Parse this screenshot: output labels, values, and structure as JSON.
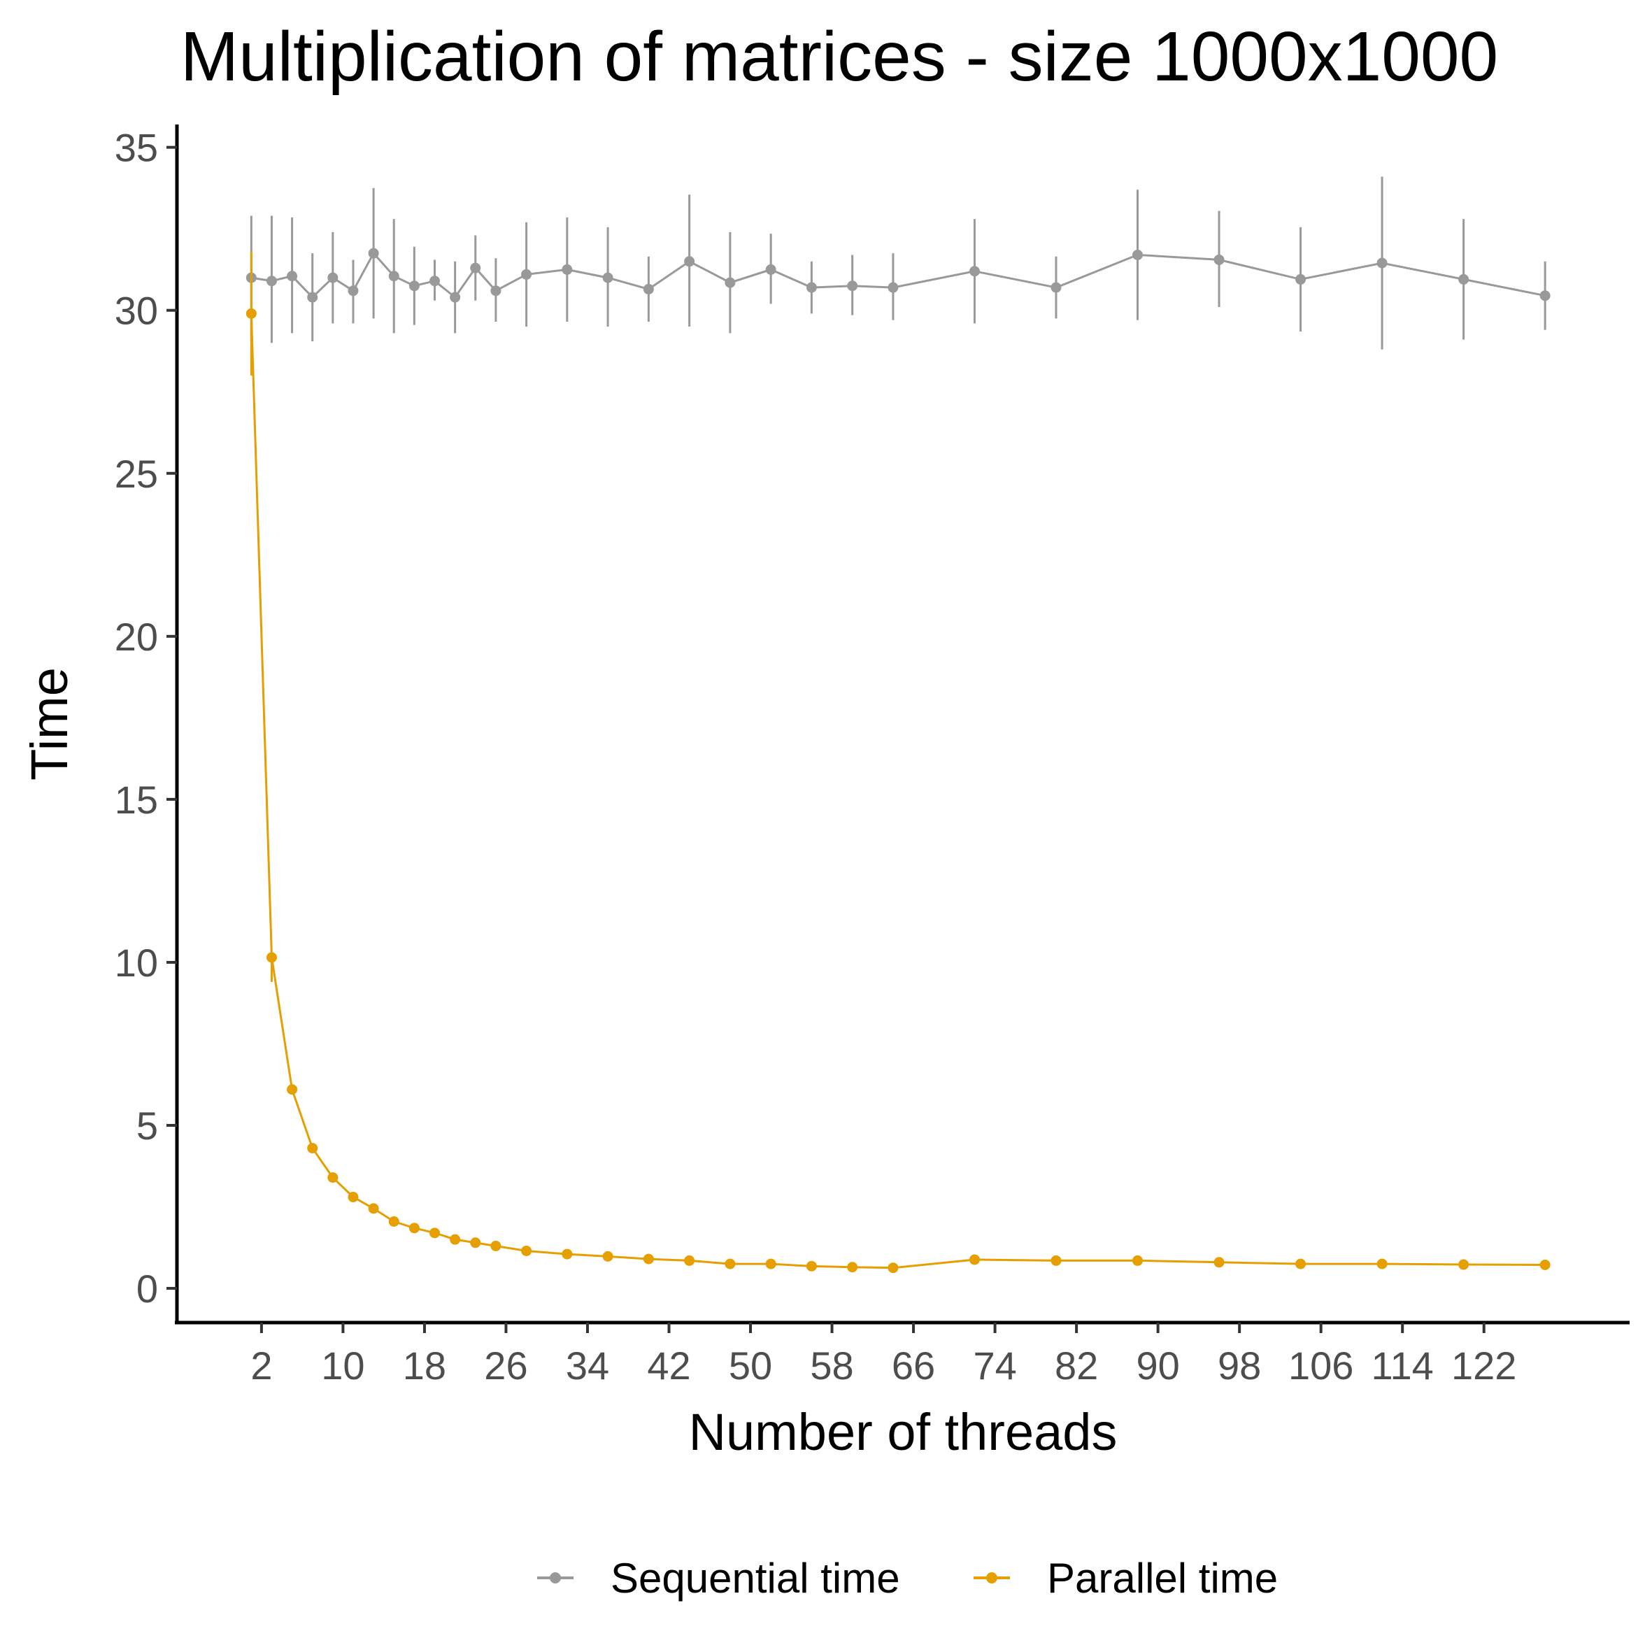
{
  "chart_data": {
    "type": "line",
    "title": "Multiplication of matrices - size 1000x1000",
    "xlabel": "Number of threads",
    "ylabel": "Time",
    "xlim": [
      -6.3,
      136.3
    ],
    "ylim": [
      -1.05,
      35.7
    ],
    "x_ticks": [
      2,
      10,
      18,
      26,
      34,
      42,
      50,
      58,
      66,
      74,
      82,
      90,
      98,
      106,
      114,
      122
    ],
    "y_ticks": [
      0,
      5,
      10,
      15,
      20,
      25,
      30,
      35
    ],
    "grid": false,
    "legend_position": "bottom",
    "series": [
      {
        "name": "Sequential time",
        "color": "#999999",
        "points": [
          {
            "x": 1,
            "y": 31.0,
            "lo": 29.1,
            "hi": 32.9
          },
          {
            "x": 3,
            "y": 30.9,
            "lo": 29.0,
            "hi": 32.9
          },
          {
            "x": 5,
            "y": 31.05,
            "lo": 29.3,
            "hi": 32.85
          },
          {
            "x": 7,
            "y": 30.4,
            "lo": 29.05,
            "hi": 31.75
          },
          {
            "x": 9,
            "y": 31.0,
            "lo": 29.6,
            "hi": 32.4
          },
          {
            "x": 11,
            "y": 30.6,
            "lo": 29.6,
            "hi": 31.55
          },
          {
            "x": 13,
            "y": 31.75,
            "lo": 29.75,
            "hi": 33.75
          },
          {
            "x": 15,
            "y": 31.05,
            "lo": 29.3,
            "hi": 32.8
          },
          {
            "x": 17,
            "y": 30.75,
            "lo": 29.55,
            "hi": 31.95
          },
          {
            "x": 19,
            "y": 30.9,
            "lo": 30.3,
            "hi": 31.55
          },
          {
            "x": 21,
            "y": 30.4,
            "lo": 29.3,
            "hi": 31.5
          },
          {
            "x": 23,
            "y": 31.3,
            "lo": 30.3,
            "hi": 32.3
          },
          {
            "x": 25,
            "y": 30.6,
            "lo": 29.65,
            "hi": 31.6
          },
          {
            "x": 28,
            "y": 31.1,
            "lo": 29.5,
            "hi": 32.7
          },
          {
            "x": 32,
            "y": 31.25,
            "lo": 29.65,
            "hi": 32.85
          },
          {
            "x": 36,
            "y": 31.0,
            "lo": 29.5,
            "hi": 32.55
          },
          {
            "x": 40,
            "y": 30.65,
            "lo": 29.65,
            "hi": 31.65
          },
          {
            "x": 44,
            "y": 31.5,
            "lo": 29.5,
            "hi": 33.55
          },
          {
            "x": 48,
            "y": 30.85,
            "lo": 29.3,
            "hi": 32.4
          },
          {
            "x": 52,
            "y": 31.25,
            "lo": 30.2,
            "hi": 32.35
          },
          {
            "x": 56,
            "y": 30.7,
            "lo": 29.9,
            "hi": 31.5
          },
          {
            "x": 60,
            "y": 30.75,
            "lo": 29.85,
            "hi": 31.7
          },
          {
            "x": 64,
            "y": 30.7,
            "lo": 29.7,
            "hi": 31.75
          },
          {
            "x": 72,
            "y": 31.2,
            "lo": 29.6,
            "hi": 32.8
          },
          {
            "x": 80,
            "y": 30.7,
            "lo": 29.75,
            "hi": 31.65
          },
          {
            "x": 88,
            "y": 31.7,
            "lo": 29.7,
            "hi": 33.7
          },
          {
            "x": 96,
            "y": 31.55,
            "lo": 30.1,
            "hi": 33.05
          },
          {
            "x": 104,
            "y": 30.95,
            "lo": 29.35,
            "hi": 32.55
          },
          {
            "x": 112,
            "y": 31.45,
            "lo": 28.8,
            "hi": 34.1
          },
          {
            "x": 120,
            "y": 30.95,
            "lo": 29.1,
            "hi": 32.8
          },
          {
            "x": 128,
            "y": 30.45,
            "lo": 29.4,
            "hi": 31.5
          }
        ]
      },
      {
        "name": "Parallel time",
        "color": "#E69F00",
        "points": [
          {
            "x": 1,
            "y": 29.9,
            "lo": 28.0,
            "hi": 31.8
          },
          {
            "x": 3,
            "y": 10.15,
            "lo": 9.4,
            "hi": 10.2
          },
          {
            "x": 5,
            "y": 6.1
          },
          {
            "x": 7,
            "y": 4.3
          },
          {
            "x": 9,
            "y": 3.4
          },
          {
            "x": 11,
            "y": 2.8
          },
          {
            "x": 13,
            "y": 2.45
          },
          {
            "x": 15,
            "y": 2.05
          },
          {
            "x": 17,
            "y": 1.85
          },
          {
            "x": 19,
            "y": 1.7
          },
          {
            "x": 21,
            "y": 1.5
          },
          {
            "x": 23,
            "y": 1.4
          },
          {
            "x": 25,
            "y": 1.3
          },
          {
            "x": 28,
            "y": 1.15
          },
          {
            "x": 32,
            "y": 1.05
          },
          {
            "x": 36,
            "y": 0.98
          },
          {
            "x": 40,
            "y": 0.9
          },
          {
            "x": 44,
            "y": 0.85
          },
          {
            "x": 48,
            "y": 0.75
          },
          {
            "x": 52,
            "y": 0.75
          },
          {
            "x": 56,
            "y": 0.68
          },
          {
            "x": 60,
            "y": 0.65
          },
          {
            "x": 64,
            "y": 0.63
          },
          {
            "x": 72,
            "y": 0.88
          },
          {
            "x": 80,
            "y": 0.85
          },
          {
            "x": 88,
            "y": 0.85
          },
          {
            "x": 96,
            "y": 0.8
          },
          {
            "x": 104,
            "y": 0.75
          },
          {
            "x": 112,
            "y": 0.75
          },
          {
            "x": 120,
            "y": 0.73
          },
          {
            "x": 128,
            "y": 0.72
          }
        ]
      }
    ]
  }
}
